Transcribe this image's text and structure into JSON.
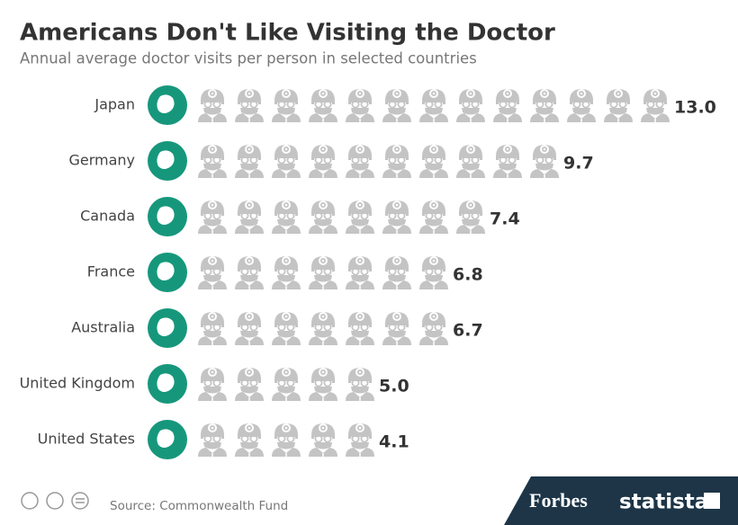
{
  "chart_data": {
    "type": "pictograph",
    "title": "Americans Don't Like Visiting the Doctor",
    "subtitle": "Annual average doctor visits per person in selected countries",
    "categories": [
      "Japan",
      "Germany",
      "Canada",
      "France",
      "Australia",
      "United Kingdom",
      "United States"
    ],
    "values": [
      13.0,
      9.7,
      7.4,
      6.8,
      6.7,
      5.0,
      4.1
    ],
    "value_labels": [
      "13.0",
      "9.7",
      "7.4",
      "6.8",
      "6.7",
      "5.0",
      "4.1"
    ],
    "color": "#1d3547",
    "source": "Source: Commonwealth Fund",
    "logos": [
      "Forbes",
      "statista"
    ]
  }
}
